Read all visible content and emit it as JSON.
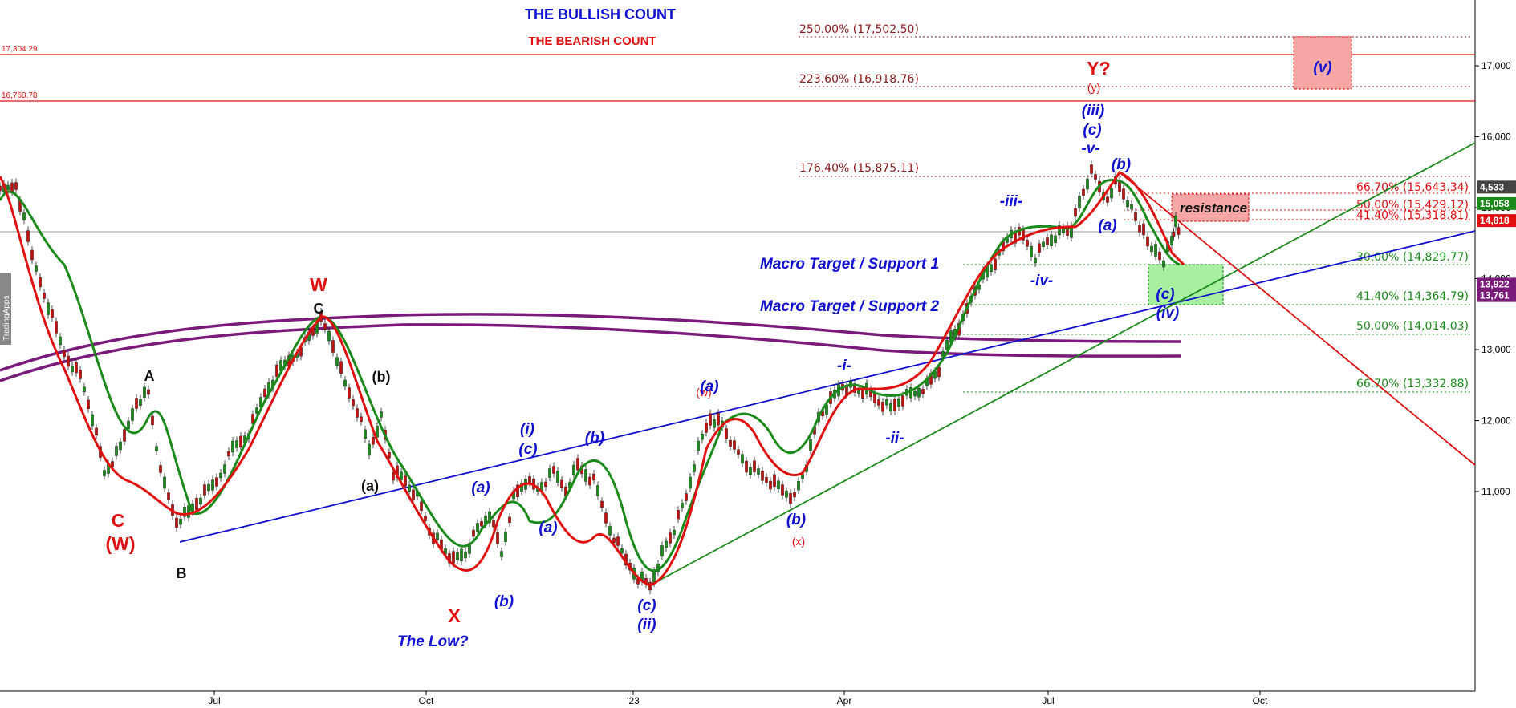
{
  "header": {
    "bullish_title": "THE BULLISH COUNT",
    "bearish_title": "THE BEARISH COUNT",
    "watermark": "TradingApps"
  },
  "colors": {
    "blue": "#1010d0",
    "red": "#e01010",
    "green": "#1a8a1a",
    "purple": "#7a1a7a",
    "darkred": "#8b1a1a",
    "black": "#111111"
  },
  "chart_data": {
    "type": "candlestick",
    "x_ticks": [
      "Jul",
      "Oct",
      "'23",
      "Apr",
      "Jul",
      "Oct"
    ],
    "y_ticks": [
      "11,000",
      "12,000",
      "13,000",
      "14,000",
      "15,000",
      "16,000",
      "17,000"
    ],
    "y_range": [
      10000,
      17850
    ],
    "price_tags": [
      {
        "label": "4,533",
        "value": 15290,
        "color": "#444444"
      },
      {
        "label": "15,058",
        "value": 15058,
        "color": "#1a8a1a"
      },
      {
        "label": "14,818",
        "value": 14818,
        "color": "#e01010"
      },
      {
        "label": "13,922",
        "value": 13922,
        "color": "#7a1a7a"
      },
      {
        "label": "13,761",
        "value": 13761,
        "color": "#7a1a7a"
      }
    ],
    "horizontal_levels": [
      {
        "label": "17,304.29",
        "value": 17304.29
      },
      {
        "label": "16,760.78",
        "value": 16760.78
      }
    ],
    "fib_extensions": [
      {
        "label": "250.00% (17,502.50)",
        "value": 17502.5
      },
      {
        "label": "223.60% (16,918.76)",
        "value": 16918.76
      },
      {
        "label": "176.40% (15,875.11)",
        "value": 15875.11
      }
    ],
    "fib_red_retracements": [
      {
        "label": "66.70% (15,643.34)",
        "value": 15643.34
      },
      {
        "label": "50.00% (15,429.12)",
        "value": 15429.12
      },
      {
        "label": "41.40% (15,318.81)",
        "value": 15318.81
      }
    ],
    "fib_green_retracements": [
      {
        "label": "30.00% (14,829.77)",
        "value": 14829.77
      },
      {
        "label": "41.40% (14,364.79)",
        "value": 14364.79
      },
      {
        "label": "50.00% (14,014.03)",
        "value": 14014.03
      },
      {
        "label": "66.70% (13,332.88)",
        "value": 13332.88
      }
    ],
    "annotations": {
      "macro1": "Macro Target / Support 1",
      "macro2": "Macro Target / Support 2",
      "resistance": "resistance",
      "the_low": "The Low?"
    },
    "wave_labels": {
      "W": "W",
      "C_top": "C",
      "A": "A",
      "b_paren": "(b)",
      "a_paren": "(a)",
      "C_bottom": "C",
      "W_paren": "(W)",
      "B": "B",
      "X": "X",
      "w_small": "(w)",
      "x_small": "(x)",
      "Y_q": "Y?",
      "y_small": "(y)",
      "i_b": "(i)",
      "c_b1": "(c)",
      "b_b1": "(b)",
      "a_b1": "(a)",
      "a_b2": "(a)",
      "b_b2": "(b)",
      "c_b2": "(c)",
      "ii_b": "(ii)",
      "a_b3": "(a)",
      "b_b3": "(b)",
      "i_dash": "-i-",
      "ii_dash": "-ii-",
      "iii_dash": "-iii-",
      "iv_dash": "-iv-",
      "v_dash": "-v-",
      "iii_paren": "(iii)",
      "c_b3": "(c)",
      "b_b4": "(b)",
      "a_b4": "(a)",
      "c_b4": "(c)",
      "iv_paren": "(iv)",
      "v_paren": "(v)"
    }
  }
}
